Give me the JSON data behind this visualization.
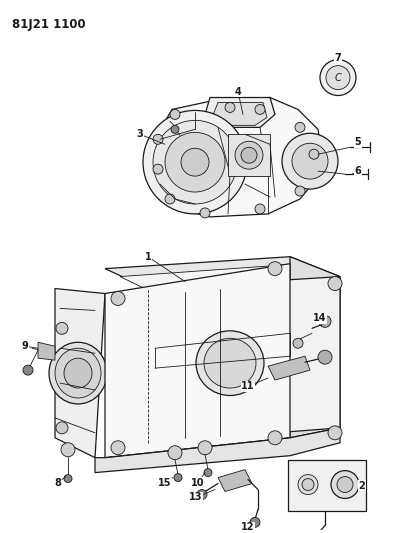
{
  "title": "81J21 1100",
  "bg": "#ffffff",
  "lc": "#1a1a1a",
  "fig_w": 3.93,
  "fig_h": 5.33,
  "dpi": 100,
  "label_fs": 7,
  "title_fs": 8.5
}
